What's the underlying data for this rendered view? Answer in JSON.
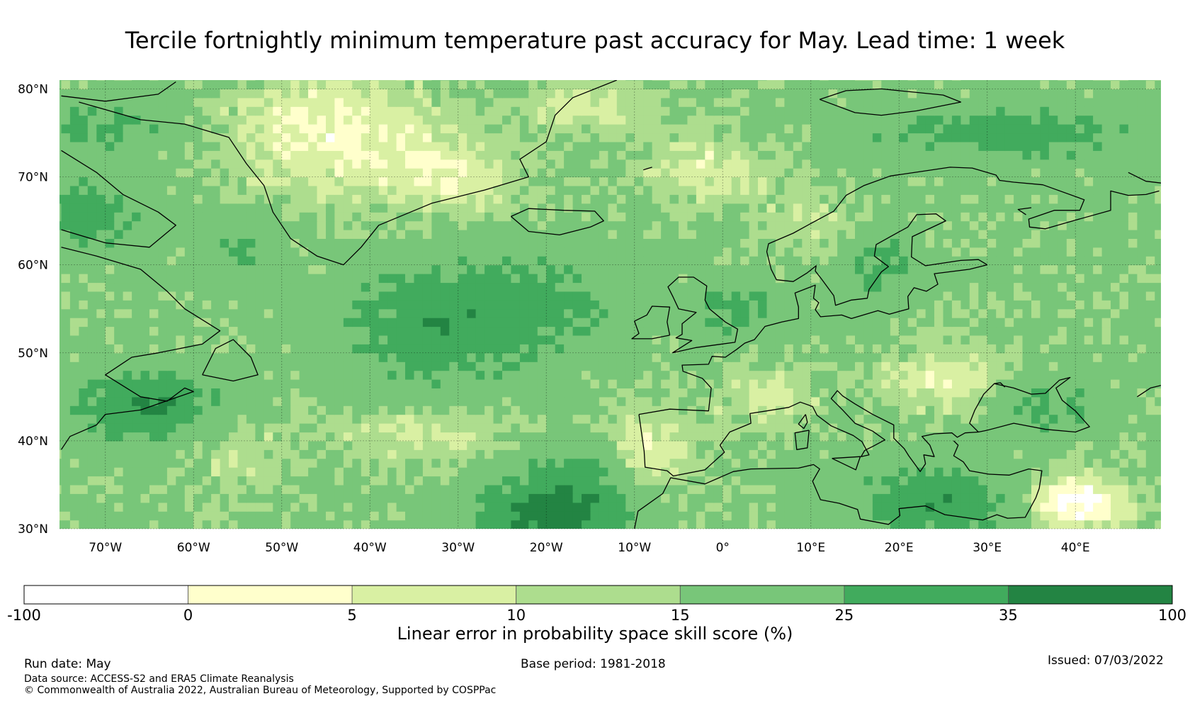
{
  "title": "Tercile fortnightly minimum temperature past accuracy for May. Lead time: 1 week",
  "map": {
    "region": "North Atlantic and Europe",
    "lat_labels": [
      "80°N",
      "70°N",
      "60°N",
      "50°N",
      "40°N",
      "30°N"
    ],
    "lon_labels": [
      "70°W",
      "60°W",
      "50°W",
      "40°W",
      "30°W",
      "20°W",
      "10°W",
      "0°",
      "10°E",
      "20°E",
      "30°E",
      "40°E"
    ]
  },
  "colorbar": {
    "title": "Linear error in probability space skill score (%)",
    "tick_labels": [
      "-100",
      "0",
      "5",
      "10",
      "15",
      "25",
      "35",
      "100"
    ],
    "bins": [
      {
        "from": -100,
        "to": 0,
        "color": "#ffffff"
      },
      {
        "from": 0,
        "to": 5,
        "color": "#ffffcc"
      },
      {
        "from": 5,
        "to": 10,
        "color": "#d9f0a3"
      },
      {
        "from": 10,
        "to": 15,
        "color": "#addd8e"
      },
      {
        "from": 15,
        "to": 25,
        "color": "#78c679"
      },
      {
        "from": 25,
        "to": 35,
        "color": "#41ab5d"
      },
      {
        "from": 35,
        "to": 100,
        "color": "#238443"
      }
    ]
  },
  "footer": {
    "run_date": "Run date: May",
    "base_period": "Base period: 1981-2018",
    "issued": "Issued: 07/03/2022",
    "data_source": "Data source: ACCESS-S2 and ERA5 Climate Reanalysis",
    "copyright": "© Commonwealth of Australia 2022, Australian Bureau of Meteorology, Supported by COSPPac"
  }
}
